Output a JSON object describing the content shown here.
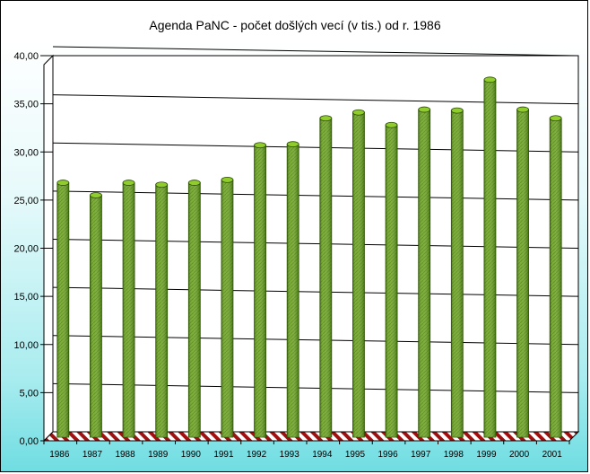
{
  "chart_data": {
    "type": "bar",
    "title": "Agenda PaNC - počet došlých vecí (v tis.) od r. 1986",
    "xlabel": "",
    "ylabel": "",
    "categories": [
      "1986",
      "1987",
      "1988",
      "1989",
      "1990",
      "1991",
      "1992",
      "1993",
      "1994",
      "1995",
      "1996",
      "1997",
      "1998",
      "1999",
      "2000",
      "2001"
    ],
    "values": [
      26.8,
      25.5,
      26.8,
      26.6,
      26.8,
      27.1,
      30.7,
      30.8,
      33.5,
      34.1,
      32.8,
      34.4,
      34.3,
      37.5,
      34.4,
      33.5
    ],
    "yticks": [
      "0,00",
      "5,00",
      "10,00",
      "15,00",
      "20,00",
      "25,00",
      "30,00",
      "35,00",
      "40,00"
    ],
    "ylim": [
      0,
      40
    ],
    "grid": true,
    "legend": "none",
    "colors": {
      "bar": "#6aa317",
      "bar_dark": "#3b6b06",
      "bar_top": "#8fcc2c",
      "floor": "#a01010"
    }
  }
}
